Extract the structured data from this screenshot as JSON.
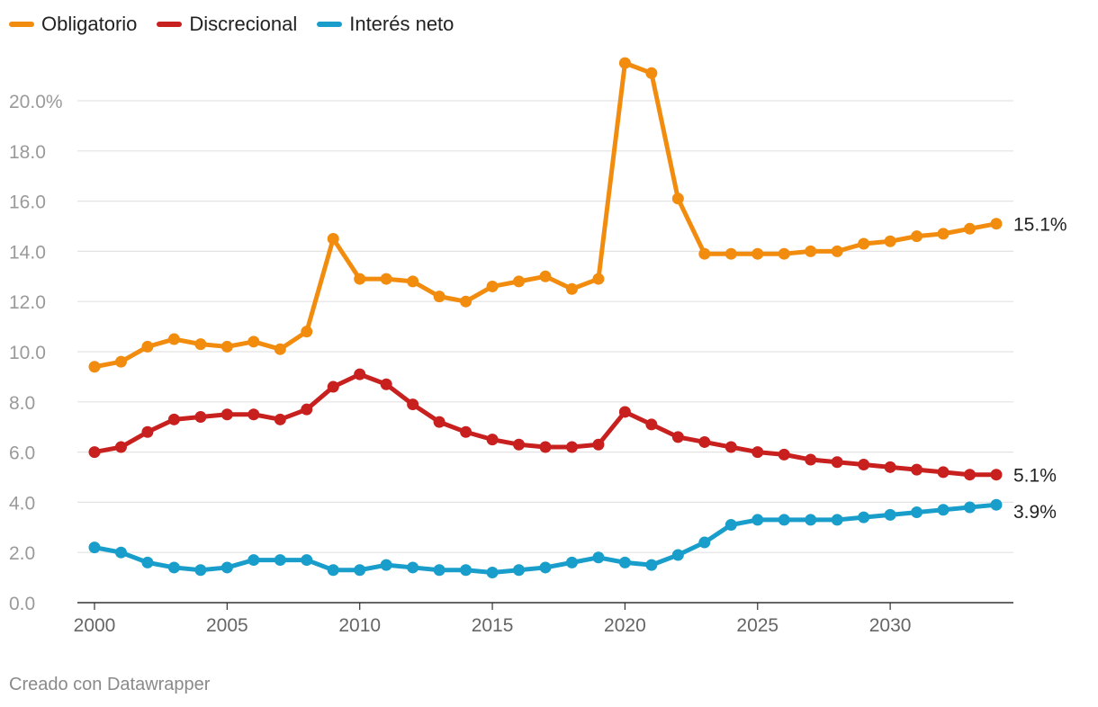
{
  "colors": {
    "obligatorio": "#f28c0f",
    "discrecional": "#c8201e",
    "interes": "#199ecb",
    "grid": "#e3e3e3",
    "axis": "#333333",
    "tick": "#9a9a9a"
  },
  "chart_data": {
    "type": "line",
    "x": [
      2000,
      2001,
      2002,
      2003,
      2004,
      2005,
      2006,
      2007,
      2008,
      2009,
      2010,
      2011,
      2012,
      2013,
      2014,
      2015,
      2016,
      2017,
      2018,
      2019,
      2020,
      2021,
      2022,
      2023,
      2024,
      2025,
      2026,
      2027,
      2028,
      2029,
      2030,
      2031,
      2032,
      2033,
      2034
    ],
    "series": [
      {
        "name": "Obligatorio",
        "color": "#f28c0f",
        "end_label": "15.1%",
        "values": [
          9.4,
          9.6,
          10.2,
          10.5,
          10.3,
          10.2,
          10.4,
          10.1,
          10.8,
          14.5,
          12.9,
          12.9,
          12.8,
          12.2,
          12.0,
          12.6,
          12.8,
          13.0,
          12.5,
          12.9,
          21.5,
          21.1,
          16.1,
          13.9,
          13.9,
          13.9,
          13.9,
          14.0,
          14.0,
          14.3,
          14.4,
          14.6,
          14.7,
          14.9,
          15.1
        ]
      },
      {
        "name": "Discrecional",
        "color": "#c8201e",
        "end_label": "5.1%",
        "values": [
          6.0,
          6.2,
          6.8,
          7.3,
          7.4,
          7.5,
          7.5,
          7.3,
          7.7,
          8.6,
          9.1,
          8.7,
          7.9,
          7.2,
          6.8,
          6.5,
          6.3,
          6.2,
          6.2,
          6.3,
          7.6,
          7.1,
          6.6,
          6.4,
          6.2,
          6.0,
          5.9,
          5.7,
          5.6,
          5.5,
          5.4,
          5.3,
          5.2,
          5.1,
          5.1
        ]
      },
      {
        "name": "Interés neto",
        "color": "#199ecb",
        "end_label": "3.9%",
        "values": [
          2.2,
          2.0,
          1.6,
          1.4,
          1.3,
          1.4,
          1.7,
          1.7,
          1.7,
          1.3,
          1.3,
          1.5,
          1.4,
          1.3,
          1.3,
          1.2,
          1.3,
          1.4,
          1.6,
          1.8,
          1.6,
          1.5,
          1.9,
          2.4,
          3.1,
          3.3,
          3.3,
          3.3,
          3.3,
          3.4,
          3.5,
          3.6,
          3.7,
          3.8,
          3.9
        ]
      }
    ],
    "y_ticks": [
      {
        "value": 0,
        "label": "0.0"
      },
      {
        "value": 2,
        "label": "2.0"
      },
      {
        "value": 4,
        "label": "4.0"
      },
      {
        "value": 6,
        "label": "6.0"
      },
      {
        "value": 8,
        "label": "8.0"
      },
      {
        "value": 10,
        "label": "10.0"
      },
      {
        "value": 12,
        "label": "12.0"
      },
      {
        "value": 14,
        "label": "14.0"
      },
      {
        "value": 16,
        "label": "16.0"
      },
      {
        "value": 18,
        "label": "18.0"
      },
      {
        "value": 20,
        "label": "20.0%"
      }
    ],
    "x_ticks": [
      {
        "value": 2000,
        "label": "2000"
      },
      {
        "value": 2005,
        "label": "2005"
      },
      {
        "value": 2010,
        "label": "2010"
      },
      {
        "value": 2015,
        "label": "2015"
      },
      {
        "value": 2020,
        "label": "2020"
      },
      {
        "value": 2025,
        "label": "2025"
      },
      {
        "value": 2030,
        "label": "2030"
      }
    ],
    "xlim": [
      2000,
      2034
    ],
    "ylim": [
      0,
      20
    ],
    "grid": true,
    "legend": "top-left"
  },
  "footer": "Creado con Datawrapper"
}
